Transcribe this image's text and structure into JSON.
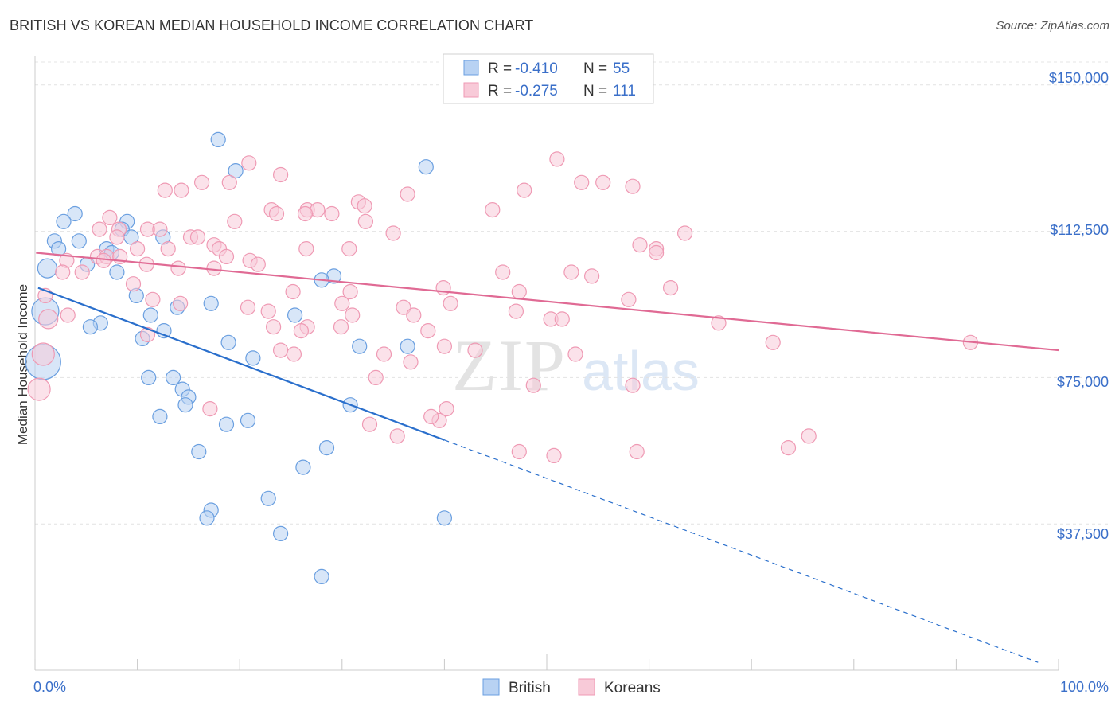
{
  "header": {
    "title": "BRITISH VS KOREAN MEDIAN HOUSEHOLD INCOME CORRELATION CHART",
    "source": "Source: ZipAtlas.com"
  },
  "chart_data": {
    "type": "scatter",
    "title": "BRITISH VS KOREAN MEDIAN HOUSEHOLD INCOME CORRELATION CHART",
    "xlabel": "",
    "ylabel": "Median Household Income",
    "xlim": [
      0,
      100
    ],
    "ylim": [
      0,
      157500
    ],
    "x_tick_labels": [
      "0.0%",
      "100.0%"
    ],
    "y_ticks": [
      37500,
      75000,
      112500,
      150000
    ],
    "y_tick_labels": [
      "$37,500",
      "$75,000",
      "$112,500",
      "$150,000"
    ],
    "grid": true,
    "watermark": {
      "main": "ZIP",
      "sub": "atlas"
    },
    "legend": {
      "rows": [
        {
          "r_label": "R = ",
          "r_value": "-0.410",
          "n_label": "N = ",
          "n_value": "55"
        },
        {
          "r_label": "R = ",
          "r_value": "-0.275",
          "n_label": "N = ",
          "n_value": "111"
        }
      ]
    },
    "series": [
      {
        "name": "British",
        "color": "#6a9fe0",
        "fill": "#b8d2f3",
        "line_color": "#2a6fcc",
        "trend": {
          "x_start": 0.3,
          "y_start": 98000,
          "x_solid_end": 40,
          "x_end": 98,
          "y_end": 2000
        },
        "points": [
          [
            17.9,
            136000,
            9
          ],
          [
            19.6,
            128000,
            9
          ],
          [
            38.2,
            129000,
            9
          ],
          [
            3.9,
            117000,
            9
          ],
          [
            2.8,
            115000,
            9
          ],
          [
            9.0,
            115000,
            9
          ],
          [
            8.5,
            113000,
            9
          ],
          [
            1.9,
            110000,
            9
          ],
          [
            4.3,
            110000,
            9
          ],
          [
            2.3,
            108000,
            9
          ],
          [
            9.4,
            111000,
            9
          ],
          [
            12.5,
            111000,
            9
          ],
          [
            7.0,
            108000,
            9
          ],
          [
            5.1,
            104000,
            9
          ],
          [
            1.2,
            103000,
            12
          ],
          [
            7.5,
            107000,
            9
          ],
          [
            8.0,
            102000,
            9
          ],
          [
            29.2,
            101000,
            9
          ],
          [
            28.0,
            100000,
            9
          ],
          [
            9.9,
            96000,
            9
          ],
          [
            17.2,
            94000,
            9
          ],
          [
            13.9,
            93000,
            9
          ],
          [
            1.0,
            92000,
            17
          ],
          [
            11.3,
            91000,
            9
          ],
          [
            25.4,
            91000,
            9
          ],
          [
            6.4,
            89000,
            9
          ],
          [
            5.4,
            88000,
            9
          ],
          [
            12.6,
            87000,
            9
          ],
          [
            18.9,
            84000,
            9
          ],
          [
            10.5,
            85000,
            9
          ],
          [
            31.7,
            83000,
            9
          ],
          [
            36.4,
            83000,
            9
          ],
          [
            0.8,
            79000,
            22
          ],
          [
            21.3,
            80000,
            9
          ],
          [
            11.1,
            75000,
            9
          ],
          [
            13.5,
            75000,
            9
          ],
          [
            14.4,
            72000,
            9
          ],
          [
            15.0,
            70000,
            9
          ],
          [
            14.7,
            68000,
            9
          ],
          [
            30.8,
            68000,
            9
          ],
          [
            12.2,
            65000,
            9
          ],
          [
            18.7,
            63000,
            9
          ],
          [
            20.8,
            64000,
            9
          ],
          [
            28.5,
            57000,
            9
          ],
          [
            16.0,
            56000,
            9
          ],
          [
            26.2,
            52000,
            9
          ],
          [
            22.8,
            44000,
            9
          ],
          [
            17.2,
            41000,
            9
          ],
          [
            16.8,
            39000,
            9
          ],
          [
            40.0,
            39000,
            9
          ],
          [
            24.0,
            35000,
            9
          ],
          [
            28.0,
            24000,
            9
          ]
        ]
      },
      {
        "name": "Koreans",
        "color": "#ef9ab4",
        "fill": "#f8cad8",
        "line_color": "#e06a94",
        "trend": {
          "x_start": 0.1,
          "y_start": 107000,
          "x_solid_end": 100,
          "x_end": 100,
          "y_end": 82000
        },
        "points": [
          [
            51.0,
            131000,
            9
          ],
          [
            20.9,
            130000,
            9
          ],
          [
            24.0,
            127000,
            9
          ],
          [
            16.3,
            125000,
            9
          ],
          [
            19.0,
            125000,
            9
          ],
          [
            53.4,
            125000,
            9
          ],
          [
            55.5,
            125000,
            9
          ],
          [
            58.4,
            124000,
            9
          ],
          [
            12.7,
            123000,
            9
          ],
          [
            14.3,
            123000,
            9
          ],
          [
            47.8,
            123000,
            9
          ],
          [
            36.4,
            122000,
            9
          ],
          [
            31.6,
            120000,
            9
          ],
          [
            32.2,
            119000,
            9
          ],
          [
            23.1,
            118000,
            9
          ],
          [
            26.6,
            118000,
            9
          ],
          [
            27.6,
            118000,
            9
          ],
          [
            23.6,
            117000,
            9
          ],
          [
            29.0,
            117000,
            9
          ],
          [
            26.4,
            117000,
            9
          ],
          [
            44.7,
            118000,
            9
          ],
          [
            7.3,
            116000,
            9
          ],
          [
            19.5,
            115000,
            9
          ],
          [
            32.3,
            115000,
            9
          ],
          [
            6.3,
            113000,
            9
          ],
          [
            8.2,
            113000,
            9
          ],
          [
            11.0,
            113000,
            9
          ],
          [
            12.2,
            113000,
            9
          ],
          [
            8.0,
            111000,
            9
          ],
          [
            15.2,
            111000,
            9
          ],
          [
            15.9,
            111000,
            9
          ],
          [
            35.0,
            112000,
            9
          ],
          [
            63.5,
            112000,
            9
          ],
          [
            17.5,
            109000,
            9
          ],
          [
            10.0,
            108000,
            9
          ],
          [
            13.0,
            108000,
            9
          ],
          [
            18.0,
            108000,
            9
          ],
          [
            59.1,
            109000,
            9
          ],
          [
            60.7,
            108000,
            9
          ],
          [
            6.1,
            106000,
            9
          ],
          [
            7.0,
            106000,
            9
          ],
          [
            8.3,
            106000,
            9
          ],
          [
            18.7,
            106000,
            9
          ],
          [
            3.1,
            105000,
            9
          ],
          [
            6.7,
            105000,
            9
          ],
          [
            21.0,
            105000,
            9
          ],
          [
            21.8,
            104000,
            9
          ],
          [
            26.5,
            108000,
            9
          ],
          [
            30.7,
            108000,
            9
          ],
          [
            52.4,
            102000,
            9
          ],
          [
            60.7,
            107000,
            9
          ],
          [
            2.7,
            102000,
            9
          ],
          [
            4.6,
            102000,
            9
          ],
          [
            10.9,
            104000,
            9
          ],
          [
            14.0,
            103000,
            9
          ],
          [
            17.5,
            103000,
            9
          ],
          [
            45.7,
            102000,
            9
          ],
          [
            54.4,
            101000,
            9
          ],
          [
            9.6,
            99000,
            9
          ],
          [
            25.2,
            97000,
            9
          ],
          [
            30.8,
            97000,
            9
          ],
          [
            39.9,
            98000,
            9
          ],
          [
            47.3,
            97000,
            9
          ],
          [
            62.1,
            98000,
            9
          ],
          [
            1.0,
            96000,
            9
          ],
          [
            11.5,
            95000,
            9
          ],
          [
            14.2,
            94000,
            9
          ],
          [
            20.8,
            93000,
            9
          ],
          [
            30.0,
            94000,
            9
          ],
          [
            36.0,
            93000,
            9
          ],
          [
            40.6,
            94000,
            9
          ],
          [
            58.0,
            95000,
            9
          ],
          [
            3.2,
            91000,
            9
          ],
          [
            1.3,
            90000,
            12
          ],
          [
            22.8,
            92000,
            9
          ],
          [
            31.0,
            91000,
            9
          ],
          [
            47.0,
            92000,
            9
          ],
          [
            50.4,
            90000,
            9
          ],
          [
            26.6,
            88000,
            9
          ],
          [
            29.9,
            88000,
            9
          ],
          [
            37.0,
            91000,
            9
          ],
          [
            51.5,
            90000,
            9
          ],
          [
            66.8,
            89000,
            9
          ],
          [
            11.0,
            86000,
            9
          ],
          [
            23.3,
            88000,
            9
          ],
          [
            26.0,
            87000,
            9
          ],
          [
            38.4,
            87000,
            9
          ],
          [
            24.0,
            82000,
            9
          ],
          [
            25.3,
            81000,
            9
          ],
          [
            40.0,
            83000,
            9
          ],
          [
            43.0,
            82000,
            9
          ],
          [
            52.8,
            81000,
            9
          ],
          [
            72.1,
            84000,
            9
          ],
          [
            91.4,
            84000,
            9
          ],
          [
            0.8,
            81000,
            14
          ],
          [
            33.3,
            75000,
            9
          ],
          [
            36.7,
            79000,
            9
          ],
          [
            34.1,
            81000,
            9
          ],
          [
            48.7,
            73000,
            9
          ],
          [
            58.4,
            73000,
            9
          ],
          [
            0.4,
            72000,
            14
          ],
          [
            17.1,
            67000,
            9
          ],
          [
            40.2,
            67000,
            9
          ],
          [
            39.5,
            64000,
            9
          ],
          [
            38.7,
            65000,
            9
          ],
          [
            32.7,
            63000,
            9
          ],
          [
            35.4,
            60000,
            9
          ],
          [
            75.6,
            60000,
            9
          ],
          [
            73.6,
            57000,
            9
          ],
          [
            47.3,
            56000,
            9
          ],
          [
            58.8,
            56000,
            9
          ],
          [
            50.7,
            55000,
            9
          ]
        ]
      }
    ]
  }
}
